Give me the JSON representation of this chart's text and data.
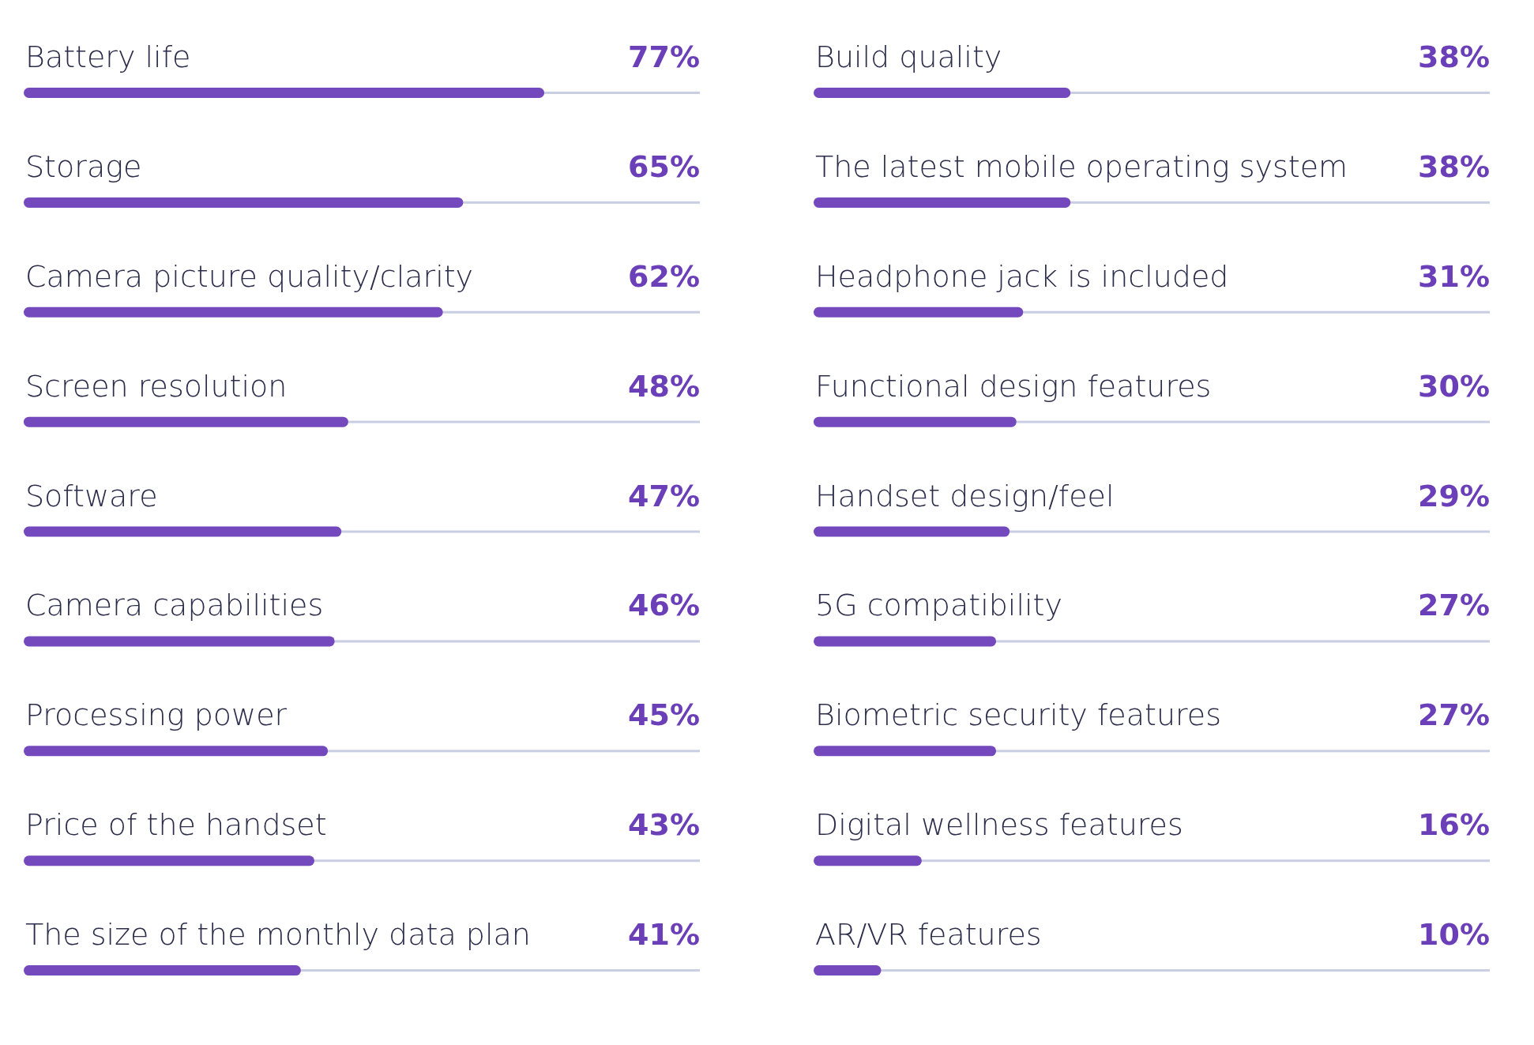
{
  "chart_data": [
    {
      "type": "bar",
      "orientation": "horizontal",
      "categories": [
        "Battery life",
        "Storage",
        "Camera picture quality/clarity",
        "Screen resolution",
        "Software",
        "Camera capabilities",
        "Processing power",
        "Price of the handset",
        "The size of the monthly data plan"
      ],
      "values": [
        77,
        65,
        62,
        48,
        47,
        46,
        45,
        43,
        41
      ],
      "value_labels": [
        "77%",
        "65%",
        "62%",
        "48%",
        "47%",
        "46%",
        "45%",
        "43%",
        "41%"
      ],
      "color": "#7449bd",
      "xlim": [
        0,
        100
      ],
      "tick_labels": false,
      "legend": false
    },
    {
      "type": "bar",
      "orientation": "horizontal",
      "categories": [
        "Build quality",
        "The latest mobile operating system",
        "Headphone jack is included",
        "Functional design features",
        "Handset design/feel",
        "5G compatibility",
        "Biometric security features",
        "Digital wellness features",
        "AR/VR features"
      ],
      "values": [
        38,
        38,
        31,
        30,
        29,
        27,
        27,
        16,
        10
      ],
      "value_labels": [
        "38%",
        "38%",
        "31%",
        "30%",
        "29%",
        "27%",
        "27%",
        "16%",
        "10%"
      ],
      "color": "#7449bd",
      "xlim": [
        0,
        100
      ],
      "tick_labels": false,
      "legend": false
    }
  ]
}
